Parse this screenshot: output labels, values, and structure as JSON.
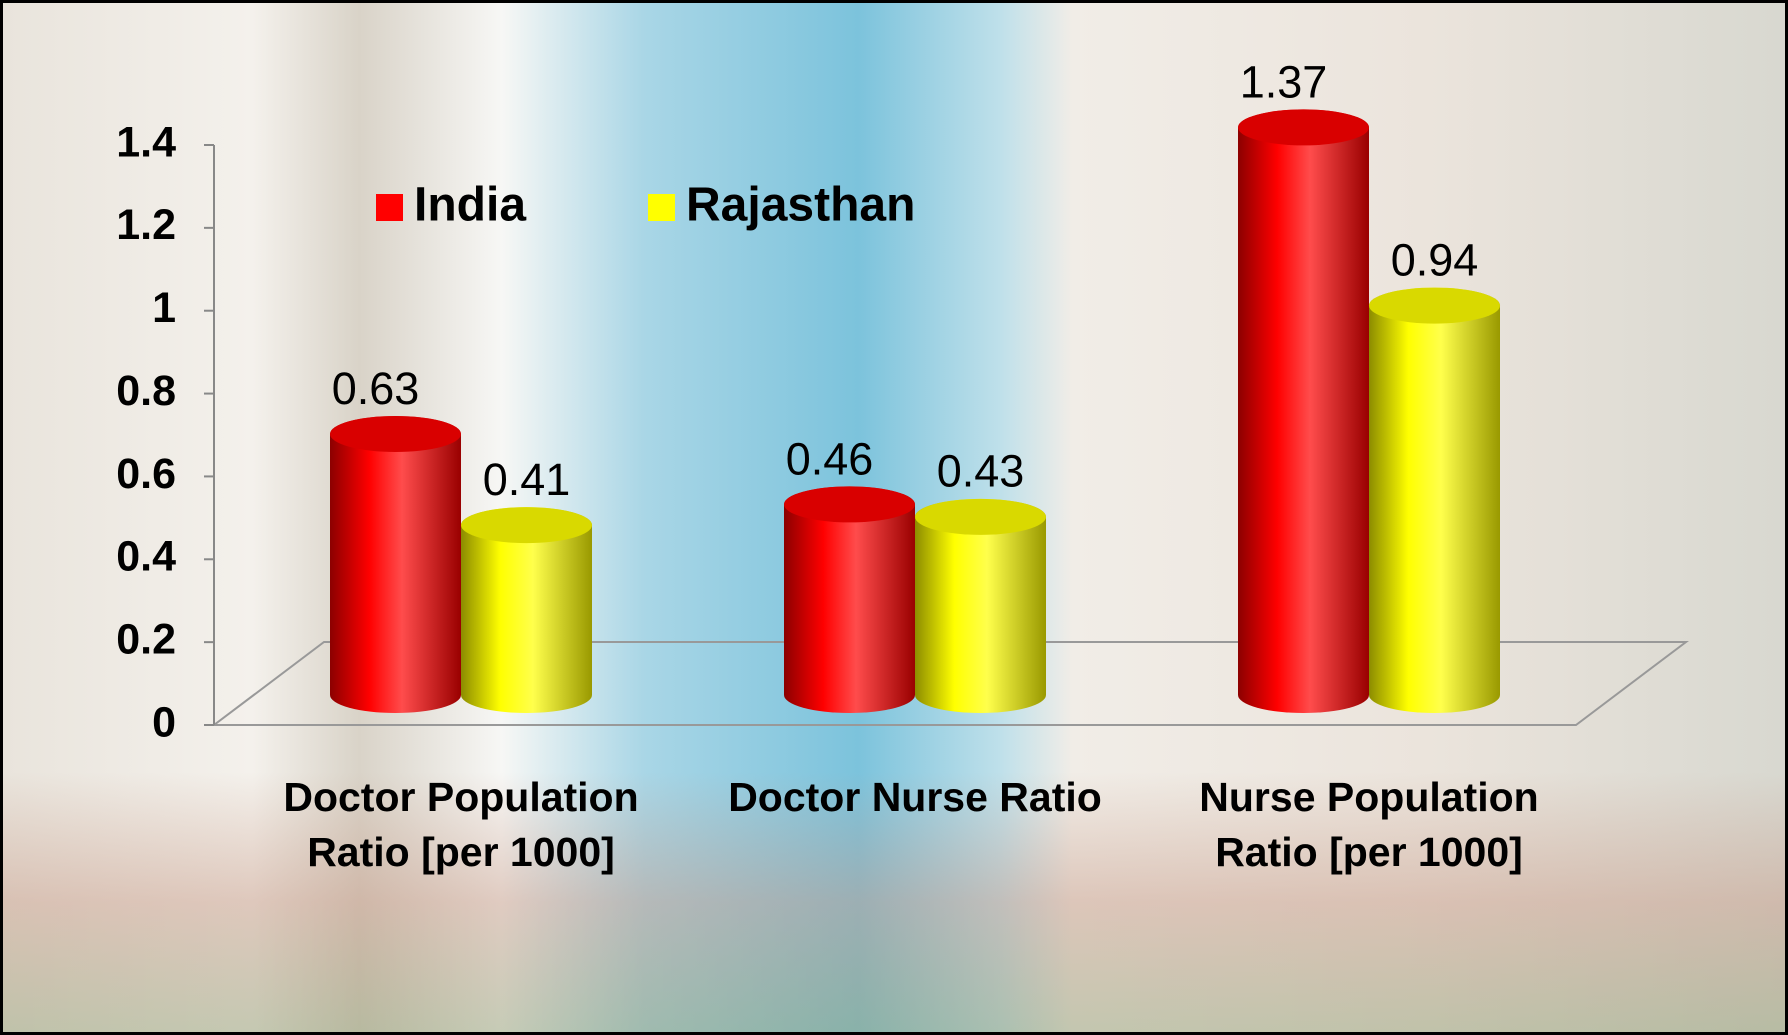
{
  "chart_data": {
    "type": "bar",
    "categories": [
      "Doctor Population Ratio [per 1000]",
      "Doctor Nurse Ratio",
      "Nurse Population Ratio [per 1000]"
    ],
    "series": [
      {
        "name": "India",
        "color": "#ff0000",
        "values": [
          0.63,
          0.46,
          1.37
        ]
      },
      {
        "name": "Rajasthan",
        "color": "#ffff00",
        "values": [
          0.41,
          0.43,
          0.94
        ]
      }
    ],
    "ylim": [
      0,
      1.4
    ],
    "yticks": [
      0,
      0.2,
      0.4,
      0.6,
      0.8,
      1,
      1.2,
      1.4
    ],
    "legend": "top-left"
  }
}
